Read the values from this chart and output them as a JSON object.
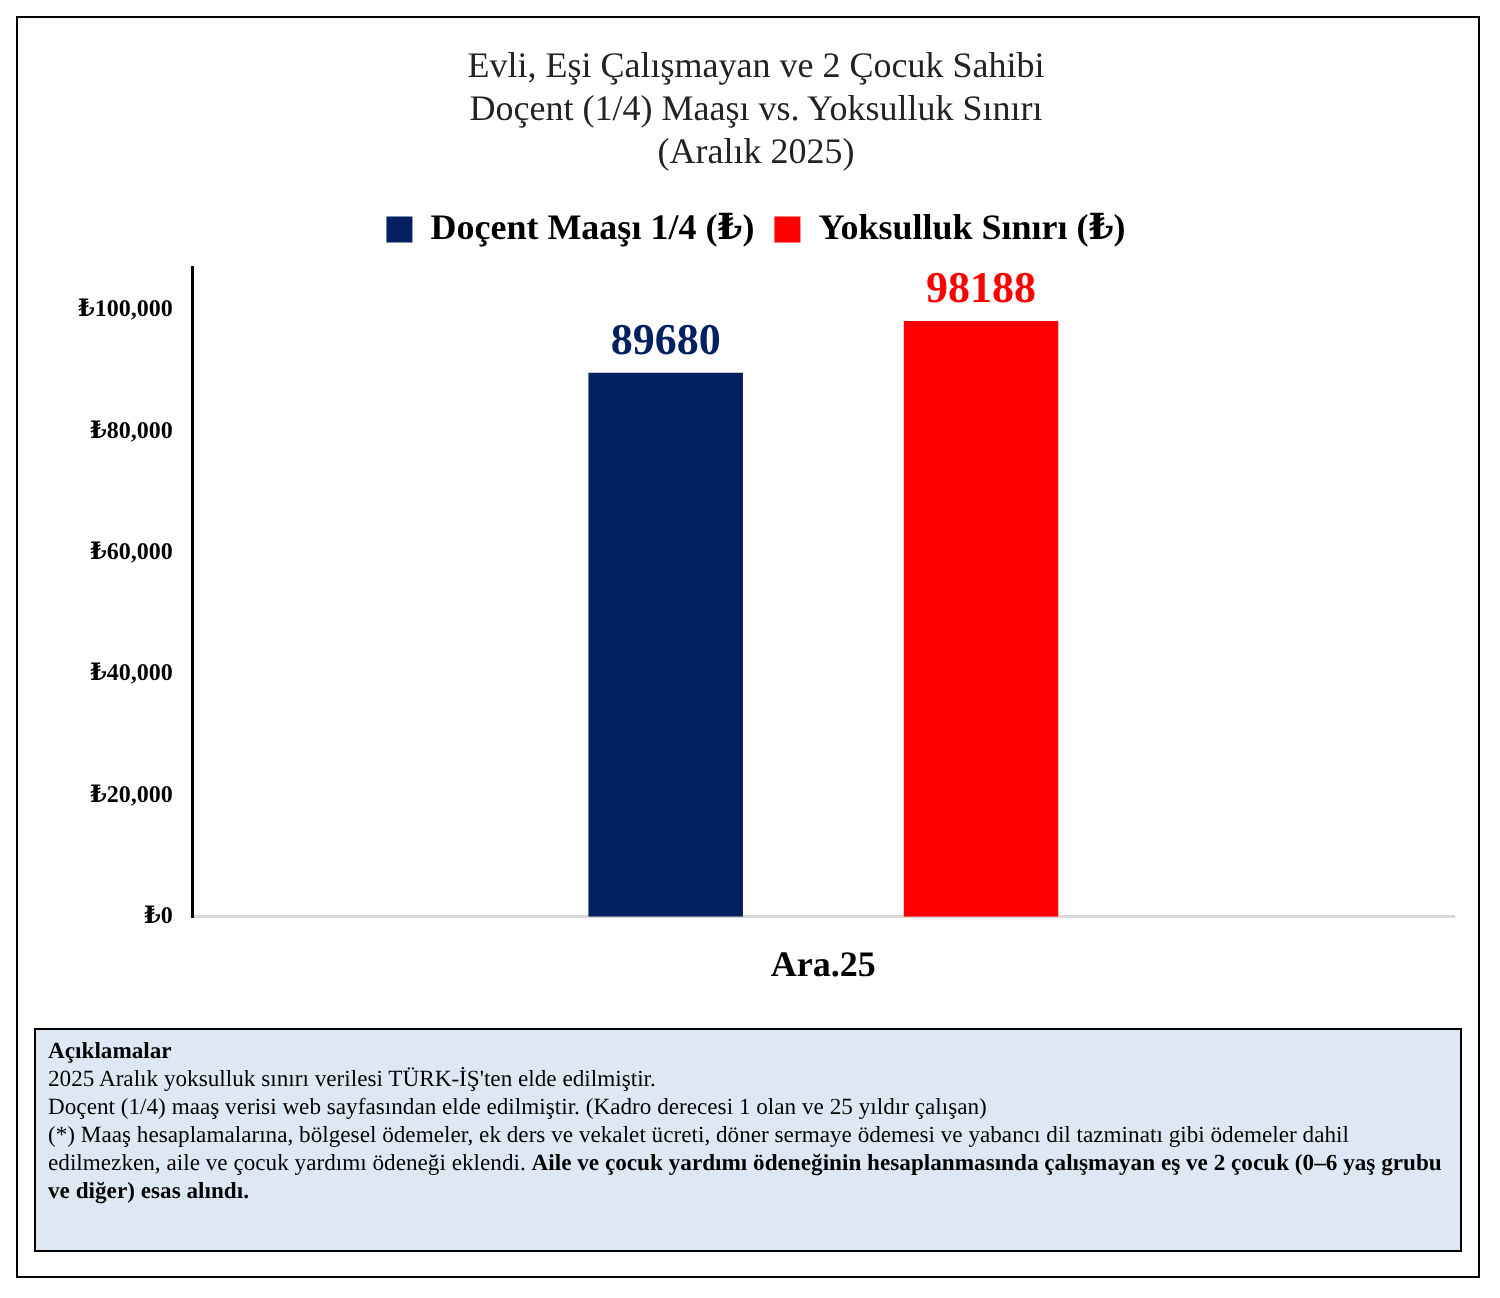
{
  "chart_data": {
    "type": "bar",
    "title": "Evli, Eşi Çalışmayan ve 2 Çocuk Sahibi\nDoçent (1/4) Maaşı vs. Yoksulluk Sınırı\n(Aralık 2025)",
    "categories": [
      "Ara.25"
    ],
    "series": [
      {
        "name": "Doçent Maaşı 1/4 (₺)",
        "color": "#03215e",
        "values": [
          89680
        ]
      },
      {
        "name": "Yoksulluk Sınırı (₺)",
        "color": "#ff0000",
        "values": [
          98188
        ]
      }
    ],
    "ylim": [
      0,
      107000
    ],
    "yticks": [
      {
        "value": 0,
        "label": "₺0"
      },
      {
        "value": 20000,
        "label": "₺20,000"
      },
      {
        "value": 40000,
        "label": "₺40,000"
      },
      {
        "value": 60000,
        "label": "₺60,000"
      },
      {
        "value": 80000,
        "label": "₺80,000"
      },
      {
        "value": 100000,
        "label": "₺100,000"
      }
    ],
    "grid": false,
    "legend": "top",
    "data_labels": true,
    "annotations": [
      "Açıklamalar",
      "2025 Aralık yoksulluk sınırı verilesi TÜRK-İŞ'ten elde edilmiştir.",
      "Doçent (1/4) maaş verisi web sayfasından elde edilmiştir. (Kadro derecesi 1 olan ve 25 yıldır çalışan)",
      "(*) Maaş hesaplamalarına, bölgesel ödemeler, ek ders ve vekalet ücreti, döner sermaye ödemesi ve yabancı dil tazminatı gibi ödemeler dahil edilmezken, aile ve çocuk yardımı ödeneği eklendi.",
      "Aile ve çocuk yardımı ödeneğinin hesaplanmasında çalışmayan eş ve 2 çocuk (0–6 yaş grubu ve diğer) esas alındı."
    ]
  }
}
